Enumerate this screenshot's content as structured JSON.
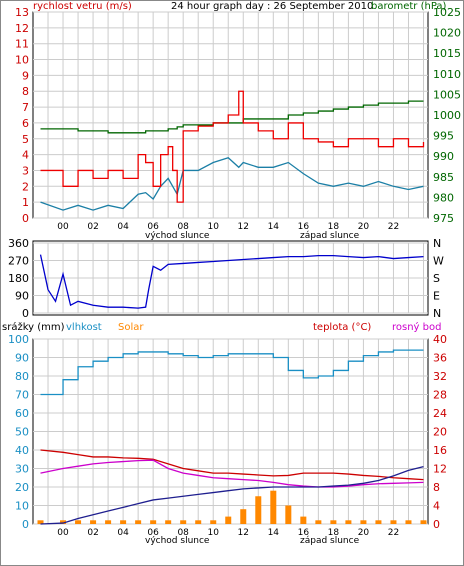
{
  "colors": {
    "wind": "#ee0000",
    "wind_avg": "#1b7fa6",
    "barometer": "#006600",
    "direction": "#0000cc",
    "rain": "#1f1f8f",
    "humidity": "#1a8fc4",
    "solar": "#ff8800",
    "temperature": "#cc0000",
    "dewpoint": "#cc00cc",
    "grid": "#cccccc",
    "axis_left": "#cc0000",
    "axis_right": "#006600"
  },
  "chart_data": [
    {
      "id": "wind_pressure",
      "type": "line",
      "title": "24 hour graph day : 26 September 2010",
      "left_label": "rychlost vetru (m/s)",
      "right_label": "barometr (hPa)",
      "left_ticks": [
        "0",
        "1",
        "2",
        "3",
        "4",
        "5",
        "6",
        "7",
        "8",
        "9",
        "10",
        "11",
        "12",
        "13"
      ],
      "right_ticks": [
        "975",
        "980",
        "985",
        "990",
        "995",
        "1000",
        "1005",
        "1010",
        "1015",
        "1020",
        "1025"
      ],
      "x_ticks": [
        "00",
        "02",
        "04",
        "06",
        "08",
        "10",
        "12",
        "14",
        "16",
        "18",
        "20",
        "22"
      ],
      "sunrise_label": "východ slunce",
      "sunset_label": "západ slunce",
      "ylim_left": [
        0,
        13
      ],
      "ylim_right": [
        975,
        1027
      ],
      "x_hours": [
        -1.5,
        0,
        1,
        2,
        3,
        4,
        5,
        5.5,
        6,
        6.5,
        7,
        7.3,
        7.6,
        8,
        9,
        10,
        11,
        11.7,
        12,
        13,
        14,
        15,
        16,
        17,
        18,
        19,
        20,
        21,
        22,
        23,
        24
      ],
      "series": [
        {
          "name": "gust",
          "values": [
            3,
            2,
            3,
            2.5,
            3,
            2.5,
            4,
            3.5,
            2,
            4,
            4.5,
            3,
            1,
            5.5,
            5.8,
            6,
            6.5,
            8,
            6,
            5.5,
            5,
            6,
            5,
            4.8,
            4.5,
            5,
            5,
            4.5,
            5,
            4.5,
            4.8
          ]
        },
        {
          "name": "avg",
          "values": [
            1,
            0.5,
            0.8,
            0.5,
            0.8,
            0.6,
            1.5,
            1.6,
            1.2,
            2,
            2.5,
            2,
            1.5,
            3,
            3,
            3.5,
            3.8,
            3.2,
            3.5,
            3.2,
            3.2,
            3.5,
            2.8,
            2.2,
            2,
            2.2,
            2,
            2.3,
            2,
            1.8,
            2
          ]
        },
        {
          "name": "barometer",
          "axis": "right",
          "values": [
            997.5,
            997.5,
            997,
            997,
            996.5,
            996.5,
            996.5,
            997,
            997,
            997,
            997.5,
            997.5,
            998,
            998.5,
            998.5,
            999,
            999,
            999,
            1000,
            1000,
            1000,
            1001,
            1001.5,
            1002,
            1002.5,
            1003,
            1003.5,
            1004,
            1004,
            1004.5,
            1004.5
          ]
        }
      ]
    },
    {
      "id": "wind_direction",
      "type": "line",
      "left_ticks": [
        "0",
        "90",
        "180",
        "270",
        "360"
      ],
      "right_ticks": [
        "N",
        "E",
        "S",
        "W",
        "N"
      ],
      "ylim": [
        0,
        360
      ],
      "x_hours": [
        -1.5,
        -1,
        -0.5,
        0,
        0.5,
        1,
        2,
        3,
        4,
        5,
        5.5,
        5.7,
        6,
        6.5,
        7,
        8,
        9,
        10,
        11,
        12,
        13,
        14,
        15,
        16,
        17,
        18,
        19,
        20,
        21,
        22,
        23,
        24
      ],
      "series": [
        {
          "name": "direction",
          "values": [
            300,
            120,
            60,
            200,
            40,
            60,
            40,
            30,
            30,
            25,
            30,
            120,
            240,
            220,
            250,
            255,
            260,
            265,
            270,
            275,
            280,
            285,
            290,
            290,
            295,
            295,
            290,
            285,
            290,
            280,
            285,
            290
          ]
        }
      ]
    },
    {
      "id": "rain_humidity_temp",
      "type": "line",
      "left_label_rain": "srážky (mm)",
      "left_label_humidity": "vlhkost",
      "label_solar": "Solar",
      "right_label_temp": "teplota (°C)",
      "right_label_dew": "rosný bod",
      "left_ticks": [
        "0",
        "10",
        "20",
        "30",
        "40",
        "50",
        "60",
        "70",
        "80",
        "90",
        "100"
      ],
      "right_ticks": [
        "0",
        "4",
        "8",
        "12",
        "16",
        "20",
        "24",
        "28",
        "32",
        "36",
        "40"
      ],
      "x_ticks": [
        "00",
        "02",
        "04",
        "06",
        "08",
        "10",
        "12",
        "14",
        "16",
        "18",
        "20",
        "22"
      ],
      "sunrise_label": "východ slunce",
      "sunset_label": "západ slunce",
      "ylim_left": [
        0,
        100
      ],
      "ylim_right": [
        0,
        40
      ],
      "x_hours": [
        -1.5,
        0,
        1,
        2,
        3,
        4,
        5,
        6,
        7,
        8,
        9,
        10,
        11,
        12,
        13,
        14,
        15,
        16,
        17,
        18,
        19,
        20,
        21,
        22,
        23,
        24
      ],
      "series": [
        {
          "name": "humidity",
          "values": [
            70,
            78,
            85,
            88,
            90,
            92,
            93,
            93,
            92,
            91,
            90,
            91,
            92,
            92,
            92,
            90,
            83,
            79,
            80,
            83,
            88,
            91,
            93,
            94,
            94,
            94
          ]
        },
        {
          "name": "temperature",
          "axis": "right",
          "values": [
            16,
            15.5,
            15,
            14.5,
            14.5,
            14.3,
            14.2,
            14,
            13,
            12,
            11.5,
            11,
            11,
            10.8,
            10.6,
            10.4,
            10.5,
            11,
            11,
            11,
            10.8,
            10.5,
            10.3,
            10,
            9.8,
            9.6
          ]
        },
        {
          "name": "dewpoint",
          "axis": "right",
          "values": [
            11,
            12,
            12.5,
            13,
            13.3,
            13.5,
            13.7,
            13.8,
            12,
            11,
            10.5,
            10,
            9.8,
            9.6,
            9.4,
            9,
            8.5,
            8.2,
            8,
            8,
            8.2,
            8.5,
            8.7,
            8.8,
            8.9,
            9
          ]
        },
        {
          "name": "rain",
          "values": [
            0,
            0.5,
            3,
            5,
            7,
            9,
            11,
            13,
            14,
            15,
            16,
            17,
            18,
            19,
            19.5,
            20,
            20,
            20,
            20,
            20.5,
            21,
            22,
            23.5,
            26,
            29,
            31
          ]
        },
        {
          "name": "solar",
          "values": [
            2,
            2,
            2,
            2,
            2,
            2,
            2,
            2,
            2,
            2,
            2,
            2,
            4,
            8,
            15,
            18,
            10,
            4,
            2,
            2,
            2,
            2,
            2,
            2,
            2,
            2
          ]
        }
      ]
    }
  ]
}
